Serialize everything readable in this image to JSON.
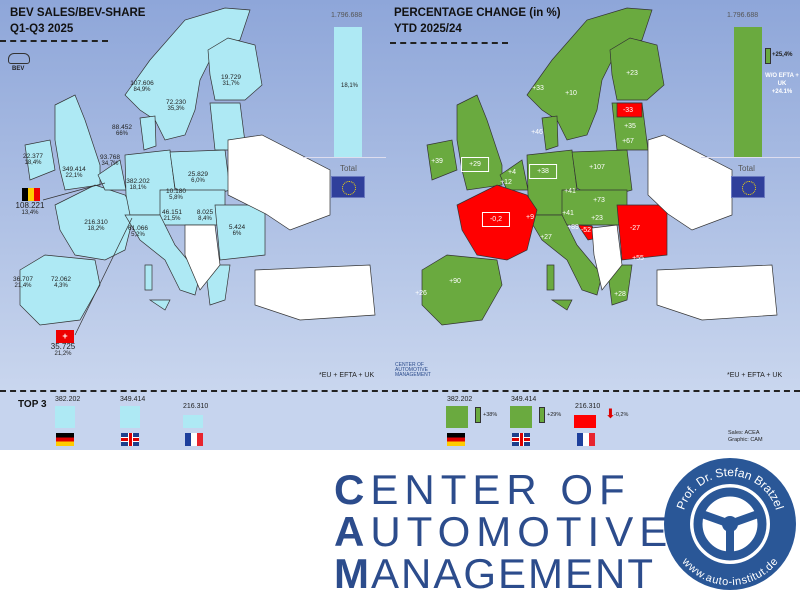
{
  "left": {
    "title_line1": "BEV SALES/BEV-SHARE",
    "title_line2": "Q1-Q3 2025",
    "bev_icon_label": "BEV",
    "countries": [
      {
        "name": "Norway",
        "value": "107.606",
        "share": "84,9%"
      },
      {
        "name": "Sweden",
        "value": "72.230",
        "share": "35,3%"
      },
      {
        "name": "Finland",
        "value": "19.729",
        "share": "31,7%"
      },
      {
        "name": "Denmark",
        "value": "88.452",
        "share": "66%"
      },
      {
        "name": "Ireland",
        "value": "22.377",
        "share": "18,4%"
      },
      {
        "name": "United Kingdom",
        "value": "349.414",
        "share": "22,1%"
      },
      {
        "name": "Netherlands",
        "value": "93.768",
        "share": "34,7%"
      },
      {
        "name": "Belgium",
        "value": "108.221",
        "share": "13,4%"
      },
      {
        "name": "Germany",
        "value": "382.202",
        "share": "18,1%"
      },
      {
        "name": "Poland",
        "value": "25.829",
        "share": "6,0%"
      },
      {
        "name": "Czechia",
        "value": "10.180",
        "share": "5,8%"
      },
      {
        "name": "Austria",
        "value": "46.151",
        "share": "21,5%"
      },
      {
        "name": "Hungary",
        "value": "8.025",
        "share": "8,4%"
      },
      {
        "name": "Romania",
        "value": "5.424",
        "share": "6%"
      },
      {
        "name": "France",
        "value": "216.310",
        "share": "18,2%"
      },
      {
        "name": "Italy",
        "value": "61.066",
        "share": "5,2%"
      },
      {
        "name": "Portugal",
        "value": "36.707",
        "share": "21,4%"
      },
      {
        "name": "Spain",
        "value": "72.062",
        "share": "4,3%"
      },
      {
        "name": "Switzerland",
        "value": "35.725",
        "share": "21,2%"
      }
    ],
    "total_value": "1.796.688",
    "total_share": "18,1%",
    "total_label": "Total",
    "footnote": "*EU + EFTA + UK"
  },
  "right": {
    "title_line1": "PERCENTAGE CHANGE (in %)",
    "title_line2": "YTD 2025/24",
    "changes": [
      {
        "name": "Norway",
        "value": "+33"
      },
      {
        "name": "Sweden",
        "value": "+10"
      },
      {
        "name": "Finland",
        "value": "+23"
      },
      {
        "name": "Estonia",
        "value": "-33"
      },
      {
        "name": "Latvia",
        "value": "+35"
      },
      {
        "name": "Lithuania",
        "value": "+67"
      },
      {
        "name": "Denmark",
        "value": "+46"
      },
      {
        "name": "Ireland",
        "value": "+39"
      },
      {
        "name": "United Kingdom",
        "value": "+29"
      },
      {
        "name": "Netherlands",
        "value": "+4"
      },
      {
        "name": "Belgium",
        "value": "+12"
      },
      {
        "name": "Germany",
        "value": "+38"
      },
      {
        "name": "Poland",
        "value": "+107"
      },
      {
        "name": "Czechia",
        "value": "+41"
      },
      {
        "name": "Slovakia",
        "value": "+73"
      },
      {
        "name": "Austria",
        "value": "+41"
      },
      {
        "name": "Hungary",
        "value": "+23"
      },
      {
        "name": "Slovenia",
        "value": "+89"
      },
      {
        "name": "Croatia",
        "value": "-52"
      },
      {
        "name": "Romania",
        "value": "-27"
      },
      {
        "name": "France",
        "value": "-0,2"
      },
      {
        "name": "Switzerland",
        "value": "+9"
      },
      {
        "name": "Italy",
        "value": "+27"
      },
      {
        "name": "Bulgaria",
        "value": "+55"
      },
      {
        "name": "Spain",
        "value": "+90"
      },
      {
        "name": "Portugal",
        "value": "+26"
      },
      {
        "name": "Greece",
        "value": "+28"
      }
    ],
    "total_value": "1.796.688",
    "total_change": "+25,4%",
    "wo_label": "W/O EFTA + UK",
    "wo_change": "+24.1%",
    "total_label": "Total",
    "footnote": "*EU + EFTA + UK",
    "small_logo": "CENTER OF AUTOMOTIVE MANAGEMENT"
  },
  "top3": {
    "label": "TOP 3",
    "items": [
      {
        "country": "Germany",
        "value": "382.202",
        "change": "+38%",
        "direction": "up"
      },
      {
        "country": "United Kingdom",
        "value": "349.414",
        "change": "+29%",
        "direction": "up"
      },
      {
        "country": "France",
        "value": "216.310",
        "change": "-0,2%",
        "direction": "down"
      }
    ],
    "source_sales": "Sales: ACEA",
    "source_graphic": "Graphic: CAM"
  },
  "logo": {
    "line1_first": "C",
    "line1_rest": "ENTER OF",
    "line2_first": "A",
    "line2_rest": "UTOMOTIVE",
    "line3_first": "M",
    "line3_rest": "ANAGEMENT",
    "ring_top": "Prof. Dr. Stefan Bratzel",
    "ring_bottom": "www.auto-institut.de"
  },
  "colors": {
    "bev": "#aee9f4",
    "positive": "#6aaa3f",
    "negative": "#ff0000",
    "logo_blue": "#2c4c8c",
    "nonmember": "#ffffff"
  }
}
